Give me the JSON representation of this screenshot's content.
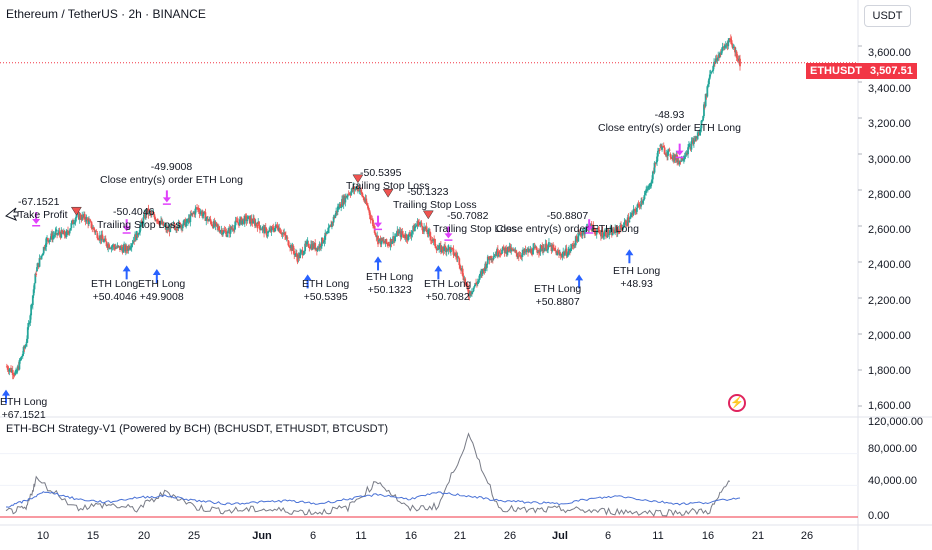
{
  "header": {
    "title": "Ethereum / TetherUS · 2h · BINANCE"
  },
  "currency_button": "USDT",
  "price_tag": {
    "symbol": "ETHUSDT",
    "price": "3,507.51"
  },
  "indicator_title": "ETH-BCH Strategy-V1 (Powered by BCH) (BCHUSDT, ETHUSDT, BTCUSDT)",
  "colors": {
    "up": "#26a69a",
    "down": "#ef5350",
    "accent": "#f23645",
    "long": "#2962ff",
    "exit": "#e040fb",
    "line1": "#4a72d6",
    "line2": "#787b86"
  },
  "icons": {
    "app_logo": "tradingview-logo-icon",
    "take_profit": "take-profit-arrow-icon"
  },
  "annotations": [
    {
      "lines": [
        "-67.1521",
        "Take Profit"
      ]
    },
    {
      "lines": [
        "-50.4046",
        "Trailing Stop Loss"
      ]
    },
    {
      "lines": [
        "-49.9008",
        "Close entry(s) order ETH Long"
      ]
    },
    {
      "lines": [
        "-50.5395",
        "Trailing Stop Loss"
      ]
    },
    {
      "lines": [
        "-50.1323",
        "Trailing Stop Loss"
      ]
    },
    {
      "lines": [
        "-50.7082",
        "Trailing Stop Loss"
      ]
    },
    {
      "lines": [
        "-50.8807",
        "Close entry(s) order ETH Long"
      ]
    },
    {
      "lines": [
        "-48.93",
        "Close entry(s) order ETH Long"
      ]
    },
    {
      "lines": [
        "ETH Long",
        "+67.1521"
      ]
    },
    {
      "lines": [
        "ETH Long",
        "+50.4046"
      ]
    },
    {
      "lines": [
        "ETH Long",
        "+49.9008"
      ]
    },
    {
      "lines": [
        "ETH Long",
        "+50.5395"
      ]
    },
    {
      "lines": [
        "ETH Long",
        "+50.1323"
      ]
    },
    {
      "lines": [
        "ETH Long",
        "+50.7082"
      ]
    },
    {
      "lines": [
        "ETH Long",
        "+50.8807"
      ]
    },
    {
      "lines": [
        "ETH Long",
        "+48.93"
      ]
    }
  ],
  "chart_data": [
    {
      "type": "line",
      "title": "Ethereum / TetherUS · 2h · BINANCE",
      "ylim": [
        1550,
        3700
      ],
      "y_ticks": [
        "3,600.00",
        "3,400.00",
        "3,200.00",
        "3,000.00",
        "2,800.00",
        "2,600.00",
        "2,400.00",
        "2,200.00",
        "2,000.00",
        "1,800.00",
        "1,600.00"
      ],
      "x_ticks": [
        "10",
        "15",
        "20",
        "25",
        "Jun",
        "6",
        "11",
        "16",
        "21",
        "26",
        "Jul",
        "6",
        "11",
        "16",
        "21",
        "26"
      ],
      "series": [
        {
          "x": [
            "May 7",
            "May 8",
            "May 9",
            "May 10",
            "May 11",
            "May 12",
            "May 13",
            "May 14",
            "May 15",
            "May 16",
            "May 17",
            "May 18",
            "May 19",
            "May 20",
            "May 21",
            "May 22",
            "May 23",
            "May 24",
            "May 25",
            "May 26",
            "May 27",
            "May 28",
            "May 29",
            "May 30",
            "May 31",
            "Jun 1",
            "Jun 2",
            "Jun 3",
            "Jun 4",
            "Jun 5",
            "Jun 6",
            "Jun 7",
            "Jun 8",
            "Jun 9",
            "Jun 10",
            "Jun 11",
            "Jun 12",
            "Jun 13",
            "Jun 14",
            "Jun 15",
            "Jun 16",
            "Jun 17",
            "Jun 18",
            "Jun 19",
            "Jun 20",
            "Jun 21",
            "Jun 22",
            "Jun 23",
            "Jun 24",
            "Jun 25",
            "Jun 26",
            "Jun 27",
            "Jun 28",
            "Jun 29",
            "Jun 30",
            "Jul 1",
            "Jul 2",
            "Jul 3",
            "Jul 4",
            "Jul 5",
            "Jul 6",
            "Jul 7",
            "Jul 8",
            "Jul 9",
            "Jul 10",
            "Jul 11",
            "Jul 12",
            "Jul 13",
            "Jul 14",
            "Jul 15",
            "Jul 16",
            "Jul 17",
            "Jul 18",
            "Jul 19"
          ],
          "values": [
            1820,
            1780,
            1950,
            2350,
            2520,
            2560,
            2550,
            2660,
            2640,
            2560,
            2500,
            2480,
            2470,
            2550,
            2680,
            2640,
            2580,
            2600,
            2620,
            2700,
            2640,
            2590,
            2560,
            2620,
            2640,
            2610,
            2560,
            2600,
            2520,
            2420,
            2500,
            2480,
            2560,
            2700,
            2780,
            2820,
            2700,
            2520,
            2500,
            2560,
            2540,
            2620,
            2560,
            2470,
            2480,
            2420,
            2220,
            2300,
            2420,
            2460,
            2470,
            2440,
            2460,
            2470,
            2490,
            2440,
            2460,
            2550,
            2600,
            2560,
            2560,
            2580,
            2640,
            2720,
            2820,
            3040,
            3000,
            2960,
            3040,
            3120,
            3450,
            3560,
            3640,
            3507
          ]
        }
      ]
    },
    {
      "type": "line",
      "title": "ETH-BCH Strategy-V1 (Powered by BCH) (BCHUSDT, ETHUSDT, BTCUSDT)",
      "ylim": [
        0,
        120000
      ],
      "y_ticks": [
        "120,000.00",
        "80,000.00",
        "40,000.00",
        "0.00"
      ],
      "series": [
        {
          "x": [
            "May 7",
            "May 9",
            "May 11",
            "May 14",
            "May 17",
            "May 20",
            "May 23",
            "May 26",
            "May 29",
            "Jun 1",
            "Jun 4",
            "Jun 7",
            "Jun 10",
            "Jun 13",
            "Jun 16",
            "Jun 19",
            "Jun 22",
            "Jun 25",
            "Jun 28",
            "Jul 1",
            "Jul 4",
            "Jul 7",
            "Jul 10",
            "Jul 13",
            "Jul 16",
            "Jul 19"
          ],
          "values": [
            12000,
            20000,
            32000,
            22000,
            18000,
            24000,
            26000,
            20000,
            16000,
            18000,
            20000,
            16000,
            22000,
            28000,
            22000,
            30000,
            26000,
            20000,
            18000,
            16000,
            22000,
            26000,
            20000,
            16000,
            18000,
            24000
          ]
        },
        {
          "x": [
            "May 7",
            "May 9",
            "May 10",
            "May 14",
            "May 17",
            "May 20",
            "May 23",
            "May 26",
            "May 29",
            "Jun 1",
            "Jun 4",
            "Jun 7",
            "Jun 10",
            "Jun 13",
            "Jun 16",
            "Jun 19",
            "Jun 22",
            "Jun 25",
            "Jun 28",
            "Jul 1",
            "Jul 4",
            "Jul 7",
            "Jul 10",
            "Jul 13",
            "Jul 16",
            "Jul 18"
          ],
          "values": [
            5000,
            8000,
            46000,
            10000,
            14000,
            8000,
            30000,
            10000,
            6000,
            8000,
            6000,
            4000,
            10000,
            44000,
            8000,
            12000,
            100000,
            10000,
            6000,
            8000,
            6000,
            5000,
            4000,
            4000,
            6000,
            45000
          ]
        }
      ]
    }
  ]
}
